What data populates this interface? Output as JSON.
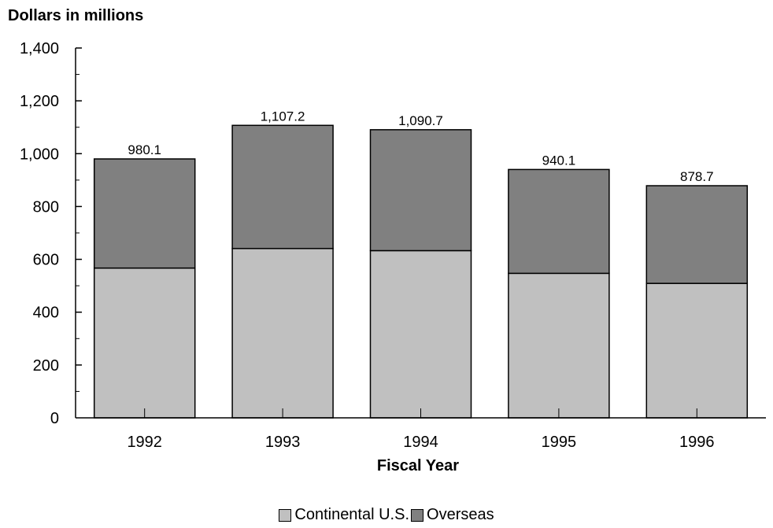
{
  "chart_data": {
    "type": "bar",
    "stacked": true,
    "ylabel": "Dollars in millions",
    "xlabel": "Fiscal Year",
    "ylim": [
      0,
      1400
    ],
    "yticks": [
      0,
      200,
      400,
      600,
      800,
      1000,
      1200,
      1400
    ],
    "ytick_labels": [
      "0",
      "200",
      "400",
      "600",
      "800",
      "1,000",
      "1,200",
      "1,400"
    ],
    "categories": [
      "1992",
      "1993",
      "1994",
      "1995",
      "1996"
    ],
    "series": [
      {
        "name": "Continental U.S.",
        "color": "#c0c0c0",
        "values": [
          567,
          641,
          633,
          547,
          509
        ]
      },
      {
        "name": "Overseas",
        "color": "#808080",
        "values": [
          413.1,
          466.2,
          457.7,
          393.1,
          369.7
        ]
      }
    ],
    "totals": [
      980.1,
      1107.2,
      1090.7,
      940.1,
      878.7
    ],
    "total_labels": [
      "980.1",
      "1,107.2",
      "1,090.7",
      "940.1",
      "878.7"
    ],
    "grid": false,
    "legend_position": "bottom"
  }
}
